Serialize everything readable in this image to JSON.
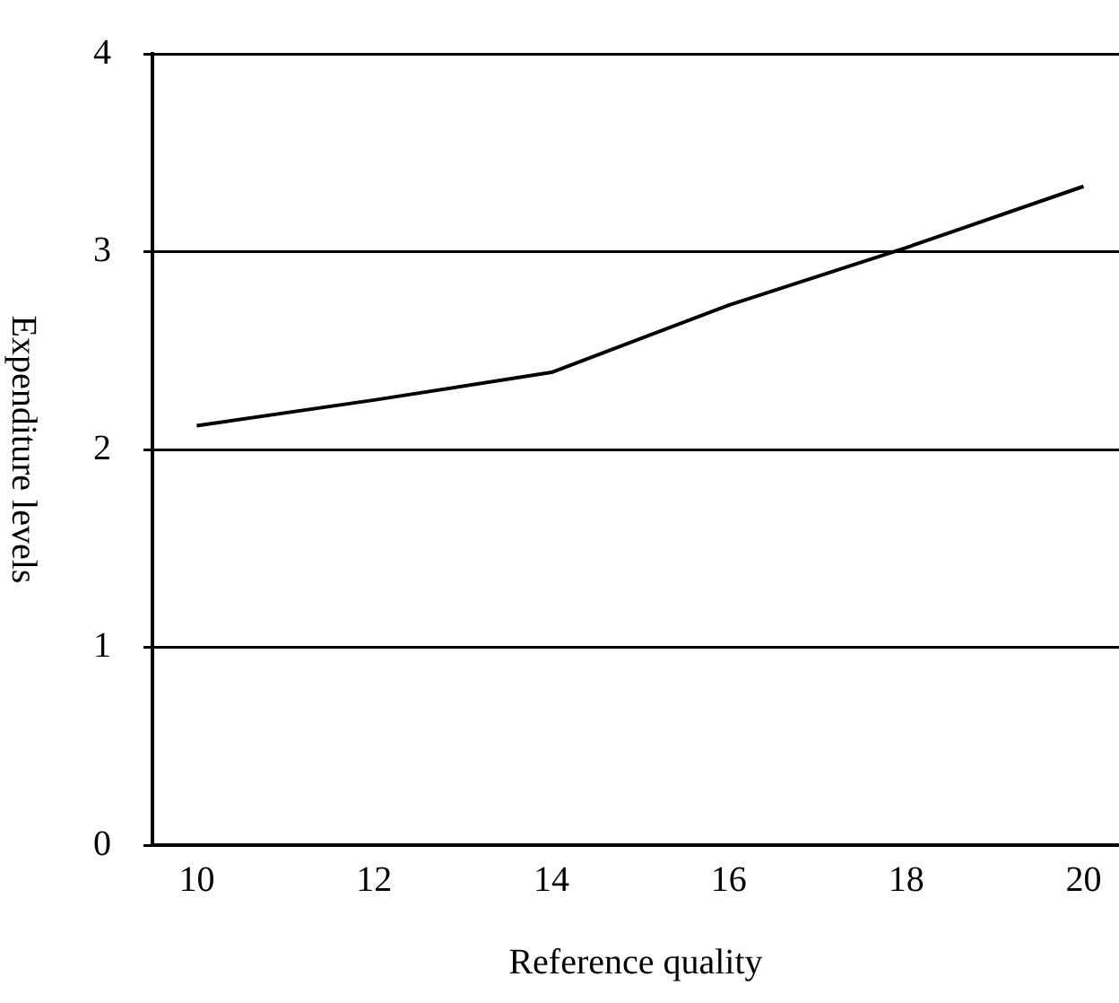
{
  "chart_data": {
    "type": "line",
    "xlabel": "Reference quality",
    "ylabel": "Expenditure levels",
    "x": [
      10,
      12,
      14,
      16,
      18,
      20
    ],
    "series": [
      {
        "color": "#000000",
        "values": [
          2.12,
          2.25,
          2.39,
          2.73,
          3.02,
          3.33
        ]
      }
    ],
    "xlim": [
      9.5,
      20.4
    ],
    "xticks": [
      10,
      12,
      14,
      16,
      18,
      20
    ],
    "ylim": [
      0,
      4
    ],
    "yticks": [
      0,
      1,
      2,
      3,
      4
    ],
    "grid": "y",
    "legend": false,
    "marker": "none",
    "line_style": "solid"
  }
}
